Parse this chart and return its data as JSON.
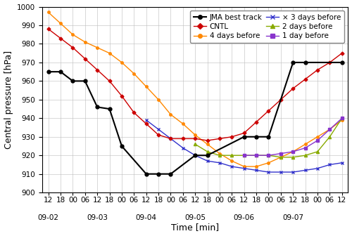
{
  "ylabel": "Central pressure [hPa]",
  "xlabel": "Time [min]",
  "ylim": [
    900,
    1000
  ],
  "yticks": [
    900,
    910,
    920,
    930,
    940,
    950,
    960,
    970,
    980,
    990,
    1000
  ],
  "background_color": "#ffffff",
  "grid_color": "#bbbbbb",
  "time_labels": [
    "12",
    "18",
    "00",
    "06",
    "12",
    "18",
    "00",
    "06",
    "12",
    "18",
    "00",
    "06",
    "12",
    "18",
    "00",
    "06",
    "12",
    "18",
    "00",
    "06",
    "12",
    "18",
    "00",
    "06",
    "12"
  ],
  "date_tick_pos": [
    0,
    4,
    8,
    12,
    16,
    20,
    24
  ],
  "date_labels": [
    "09-02",
    "09-03",
    "09-04",
    "09-05",
    "09-06",
    "09-07",
    ""
  ],
  "n_ticks": 25,
  "jma_color": "#000000",
  "cntl_color": "#cc0000",
  "four_color": "#ff8800",
  "three_color": "#3333cc",
  "two_color": "#88aa00",
  "one_color": "#8833cc",
  "jma_x": [
    0,
    1,
    2,
    3,
    4,
    5,
    6,
    8,
    9,
    10,
    12,
    13,
    16,
    17,
    18,
    20,
    21,
    24
  ],
  "jma_y": [
    965,
    965,
    960,
    960,
    946,
    945,
    925,
    910,
    910,
    910,
    920,
    920,
    930,
    930,
    930,
    970,
    970,
    970
  ],
  "cntl_x": [
    0,
    1,
    2,
    3,
    4,
    5,
    6,
    7,
    8,
    9,
    10,
    11,
    12,
    13,
    14,
    15,
    16,
    17,
    18,
    19,
    20,
    21,
    22,
    23,
    24
  ],
  "cntl_y": [
    988,
    983,
    978,
    972,
    966,
    960,
    952,
    943,
    937,
    931,
    929,
    929,
    929,
    928,
    929,
    930,
    932,
    938,
    944,
    950,
    956,
    961,
    966,
    970,
    975
  ],
  "four_x": [
    0,
    1,
    2,
    3,
    4,
    5,
    6,
    7,
    8,
    9,
    10,
    11,
    12,
    13,
    14,
    15,
    16,
    17,
    18,
    19,
    20,
    21,
    22,
    23,
    24
  ],
  "four_y": [
    997,
    991,
    985,
    981,
    978,
    975,
    970,
    964,
    957,
    950,
    942,
    937,
    931,
    926,
    921,
    917,
    914,
    914,
    916,
    919,
    922,
    926,
    930,
    934,
    939
  ],
  "three_x": [
    8,
    9,
    10,
    11,
    12,
    13,
    14,
    15,
    16,
    17,
    18,
    19,
    20,
    21,
    22,
    23,
    24
  ],
  "three_y": [
    939,
    934,
    929,
    924,
    920,
    917,
    916,
    914,
    913,
    912,
    911,
    911,
    911,
    912,
    913,
    915,
    916
  ],
  "two_x": [
    12,
    13,
    14,
    15,
    16,
    17,
    18,
    19,
    20,
    21,
    22,
    23,
    24
  ],
  "two_y": [
    926,
    922,
    920,
    920,
    920,
    920,
    920,
    919,
    919,
    920,
    922,
    930,
    940
  ],
  "one_x": [
    16,
    17,
    18,
    19,
    20,
    21,
    22,
    23,
    24
  ],
  "one_y": [
    920,
    920,
    920,
    921,
    922,
    924,
    928,
    934,
    940
  ],
  "legend_fontsize": 7.5,
  "tick_fontsize": 7.5,
  "label_fontsize": 9
}
